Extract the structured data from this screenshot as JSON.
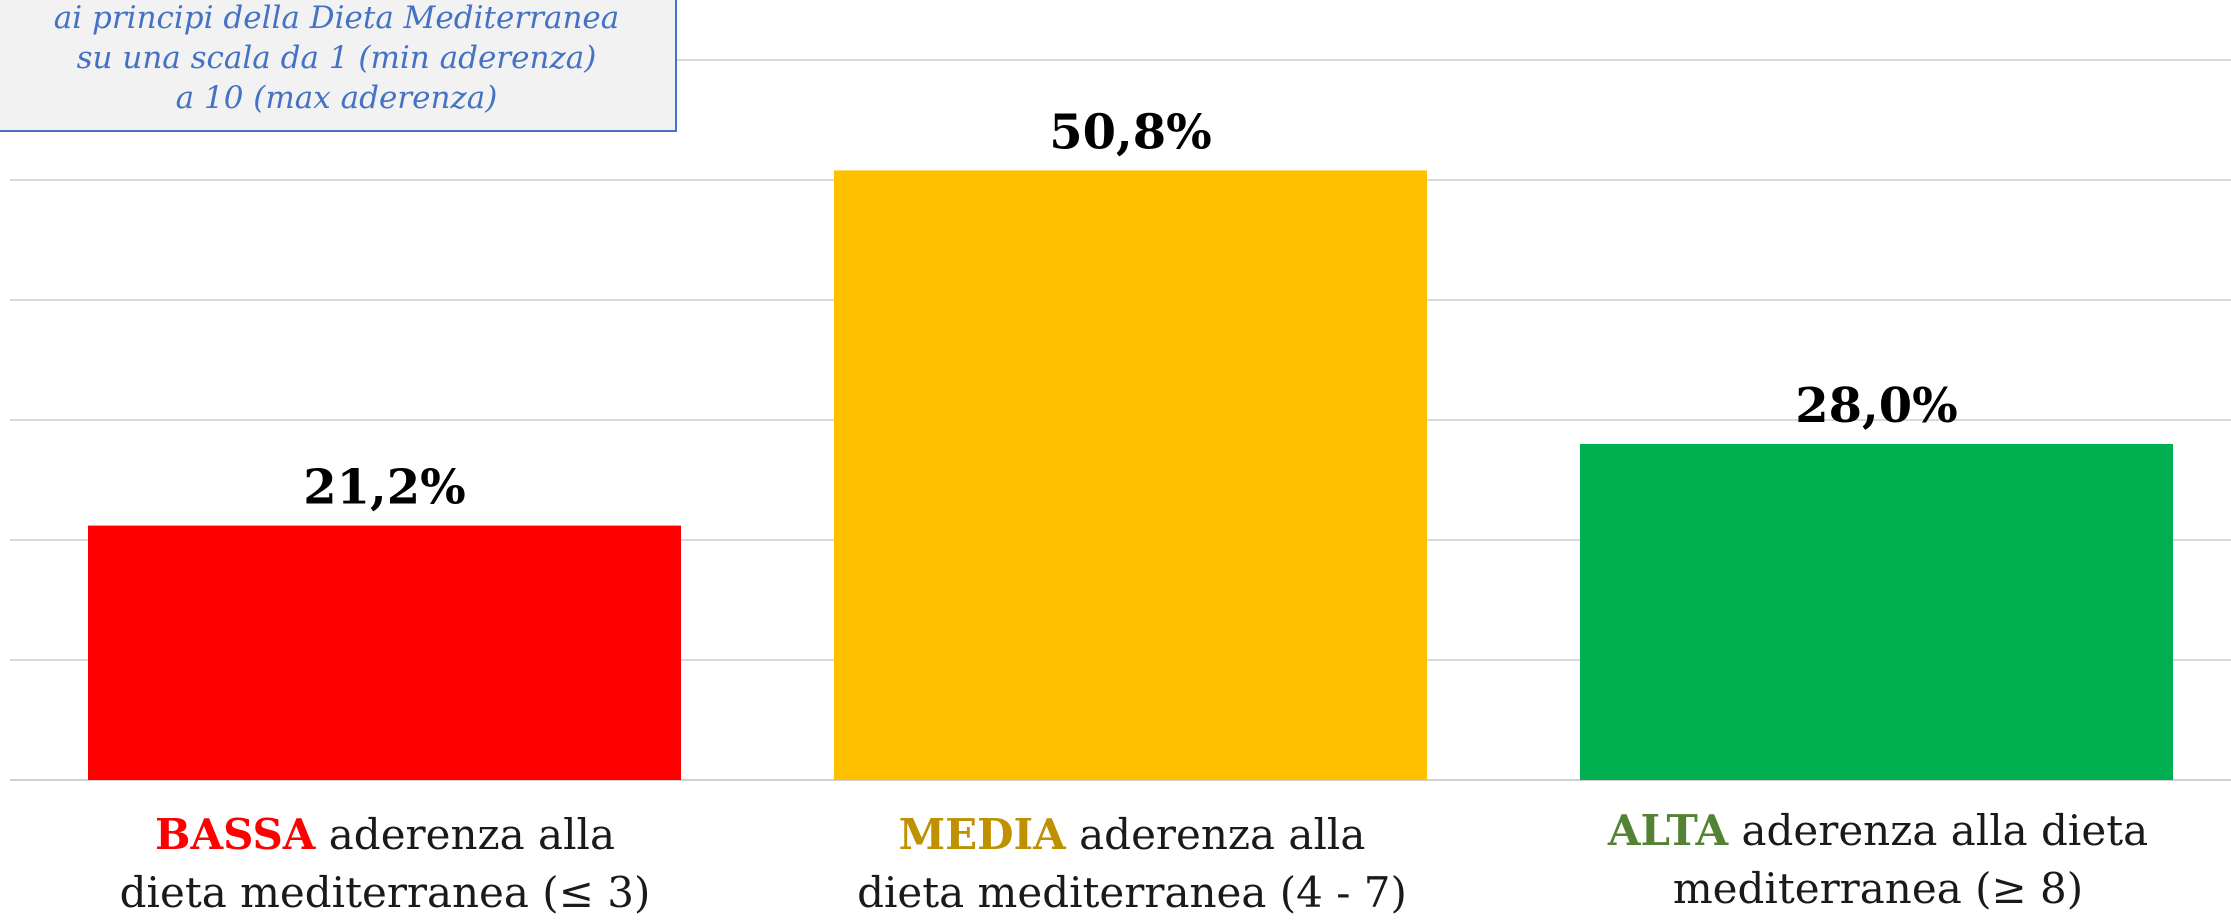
{
  "chart_data": {
    "type": "bar",
    "categories": [
      {
        "highlight": "BASSA",
        "highlight_color": "#ff0000",
        "rest_line1": "aderenza alla",
        "line2": "dieta mediterranea (≤ 3)"
      },
      {
        "highlight": "MEDIA",
        "highlight_color": "#bf9000",
        "rest_line1": "aderenza alla",
        "line2": "dieta mediterranea (4 - 7)"
      },
      {
        "highlight": "ALTA",
        "highlight_color": "#548235",
        "rest_line1": "aderenza alla dieta",
        "line2": "mediterranea (≥ 8)"
      }
    ],
    "values": [
      21.2,
      50.8,
      28.0
    ],
    "value_labels": [
      "21,2%",
      "50,8%",
      "28,0%"
    ],
    "bar_colors": [
      "#ff0000",
      "#ffc000",
      "#00b050"
    ],
    "ylim": [
      0,
      60
    ],
    "grid": true
  },
  "note": {
    "lines": [
      "ai principi della Dieta Mediterranea",
      "su una scala da 1 (min aderenza)",
      "a 10 (max aderenza)"
    ]
  }
}
